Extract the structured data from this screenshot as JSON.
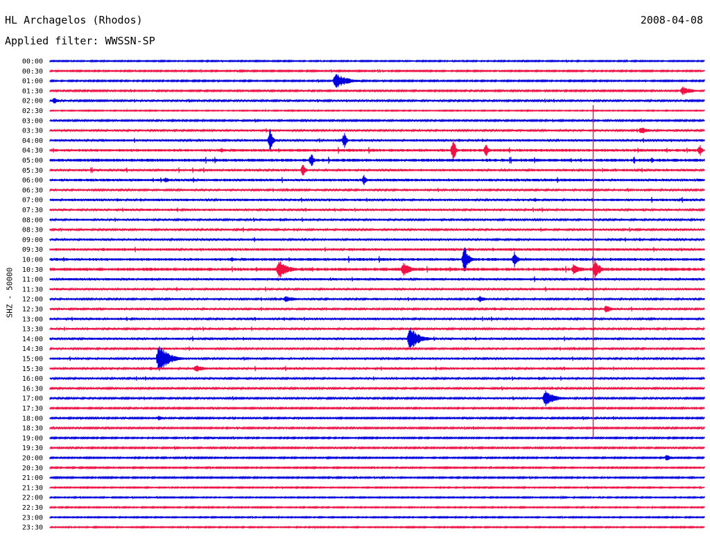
{
  "header": {
    "station": "HL Archagelos (Rhodos)",
    "date": "2008-04-08",
    "filter": "Applied filter: WWSSN-SP"
  },
  "channel_label": "SHZ - 50000",
  "colors": {
    "blue": "#0000dd",
    "red": "#ee1144",
    "text": "#000000",
    "background": "#ffffff"
  },
  "chart_data": {
    "type": "line",
    "subtype": "helicorder",
    "row_labels": [
      "00:00",
      "00:30",
      "01:00",
      "01:30",
      "02:00",
      "02:30",
      "03:00",
      "03:30",
      "04:00",
      "04:30",
      "05:00",
      "05:30",
      "06:00",
      "06:30",
      "07:00",
      "07:30",
      "08:00",
      "08:30",
      "09:00",
      "09:30",
      "10:00",
      "10:30",
      "11:00",
      "11:30",
      "12:00",
      "12:30",
      "13:00",
      "13:30",
      "14:00",
      "14:30",
      "15:00",
      "15:30",
      "16:00",
      "16:30",
      "17:00",
      "17:30",
      "18:00",
      "18:30",
      "19:00",
      "19:30",
      "20:00",
      "20:30",
      "21:00",
      "21:30",
      "22:00",
      "22:30",
      "23:00",
      "23:30"
    ],
    "row_colors": [
      "blue",
      "red"
    ],
    "row_duration_minutes": 30,
    "noise_level": [
      0.6,
      0.7,
      0.7,
      0.8,
      0.9,
      0.5,
      0.8,
      1.0,
      1.2,
      1.4,
      1.5,
      1.2,
      1.3,
      1.0,
      1.2,
      1.1,
      1.0,
      1.0,
      1.1,
      1.3,
      1.4,
      1.6,
      1.2,
      1.1,
      1.0,
      1.0,
      1.1,
      1.0,
      1.1,
      1.0,
      1.1,
      1.1,
      1.0,
      0.9,
      0.9,
      0.8,
      0.8,
      0.8,
      0.7,
      0.8,
      0.7,
      0.7,
      0.7,
      0.6,
      0.6,
      0.6,
      0.6,
      0.6
    ],
    "events": [
      {
        "row": 2,
        "minute": 13.1,
        "amplitude": 12,
        "duration_min": 1.5
      },
      {
        "row": 3,
        "minute": 29.0,
        "amplitude": 7,
        "duration_min": 1.2
      },
      {
        "row": 4,
        "minute": 0.2,
        "amplitude": 5,
        "duration_min": 0.6
      },
      {
        "row": 7,
        "minute": 27.1,
        "amplitude": 6,
        "duration_min": 1.0
      },
      {
        "row": 8,
        "minute": 10.1,
        "amplitude": 18,
        "duration_min": 0.3
      },
      {
        "row": 8,
        "minute": 13.5,
        "amplitude": 12,
        "duration_min": 0.3
      },
      {
        "row": 9,
        "minute": 18.5,
        "amplitude": 18,
        "duration_min": 0.3
      },
      {
        "row": 9,
        "minute": 20.0,
        "amplitude": 10,
        "duration_min": 0.3
      },
      {
        "row": 9,
        "minute": 29.8,
        "amplitude": 9,
        "duration_min": 0.3
      },
      {
        "row": 10,
        "minute": 12.0,
        "amplitude": 12,
        "duration_min": 0.3
      },
      {
        "row": 11,
        "minute": 11.6,
        "amplitude": 10,
        "duration_min": 0.3
      },
      {
        "row": 12,
        "minute": 14.4,
        "amplitude": 8,
        "duration_min": 0.3
      },
      {
        "row": 12,
        "minute": 5.3,
        "amplitude": 4,
        "duration_min": 0.8
      },
      {
        "row": 20,
        "minute": 19.0,
        "amplitude": 22,
        "duration_min": 0.5
      },
      {
        "row": 20,
        "minute": 21.3,
        "amplitude": 12,
        "duration_min": 0.4
      },
      {
        "row": 21,
        "minute": 10.5,
        "amplitude": 14,
        "duration_min": 1.2
      },
      {
        "row": 21,
        "minute": 16.2,
        "amplitude": 11,
        "duration_min": 1.0
      },
      {
        "row": 21,
        "minute": 25.0,
        "amplitude": 15,
        "duration_min": 0.6
      },
      {
        "row": 21,
        "minute": 24.0,
        "amplitude": 8,
        "duration_min": 1.0
      },
      {
        "row": 24,
        "minute": 10.8,
        "amplitude": 5,
        "duration_min": 1.5
      },
      {
        "row": 24,
        "minute": 19.7,
        "amplitude": 5,
        "duration_min": 0.8
      },
      {
        "row": 25,
        "minute": 25.5,
        "amplitude": 6,
        "duration_min": 0.8
      },
      {
        "row": 28,
        "minute": 16.5,
        "amplitude": 18,
        "duration_min": 1.2
      },
      {
        "row": 30,
        "minute": 5.0,
        "amplitude": 22,
        "duration_min": 1.3
      },
      {
        "row": 31,
        "minute": 6.7,
        "amplitude": 6,
        "duration_min": 1.0
      },
      {
        "row": 34,
        "minute": 22.7,
        "amplitude": 12,
        "duration_min": 1.3
      },
      {
        "row": 36,
        "minute": 5.0,
        "amplitude": 4,
        "duration_min": 0.6
      },
      {
        "row": 40,
        "minute": 28.3,
        "amplitude": 6,
        "duration_min": 0.5
      }
    ],
    "vertical_spike": {
      "minute": 24.9,
      "from_row": 5,
      "to_row": 38
    }
  }
}
